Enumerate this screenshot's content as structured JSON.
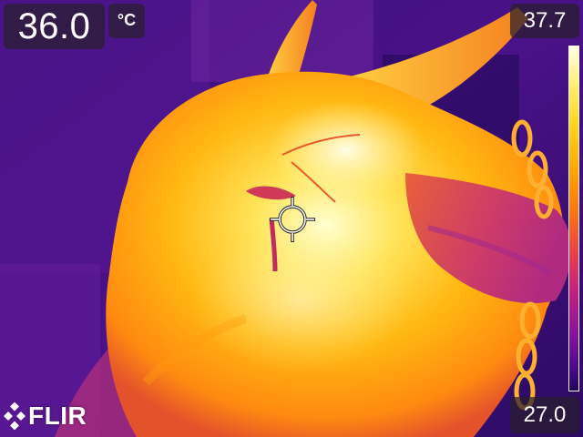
{
  "app": {
    "brand": "FLIR"
  },
  "measurement": {
    "spot_temperature": "36.0",
    "unit": "°C"
  },
  "scale": {
    "max": "37.7",
    "min": "27.0",
    "palette": "iron",
    "palette_colors": [
      "#ffffe8",
      "#fff27a",
      "#ffd820",
      "#ffaa00",
      "#ff7410",
      "#ec3e4a",
      "#c11e83",
      "#8512a0",
      "#4c0a8c",
      "#1f0660"
    ]
  },
  "icons": {
    "crosshair": "spot-meter-crosshair-icon",
    "logo": "flir-diamond-logo-icon"
  }
}
